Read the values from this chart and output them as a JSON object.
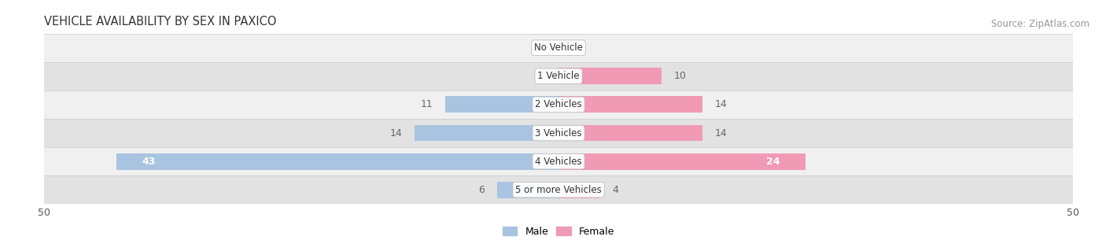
{
  "title": "VEHICLE AVAILABILITY BY SEX IN PAXICO",
  "source": "Source: ZipAtlas.com",
  "categories": [
    "No Vehicle",
    "1 Vehicle",
    "2 Vehicles",
    "3 Vehicles",
    "4 Vehicles",
    "5 or more Vehicles"
  ],
  "male_values": [
    0,
    0,
    11,
    14,
    43,
    6
  ],
  "female_values": [
    0,
    10,
    14,
    14,
    24,
    4
  ],
  "male_color": "#a8c4e0",
  "female_color": "#f09ab5",
  "bar_height": 0.58,
  "xlim": 50,
  "label_color_white": "#ffffff",
  "label_color_dark": "#666666",
  "background_row_light": "#f0f0f0",
  "background_row_dark": "#e2e2e2",
  "title_fontsize": 10.5,
  "source_fontsize": 8.5,
  "tick_fontsize": 9,
  "bar_label_fontsize": 9,
  "category_label_fontsize": 8.5,
  "legend_fontsize": 9
}
